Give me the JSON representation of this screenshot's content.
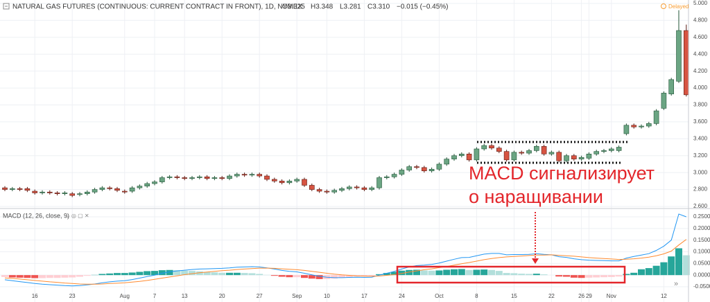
{
  "header": {
    "title": "NATURAL GAS FUTURES (CONTINUOUS: CURRENT CONTRACT IN FRONT), 1D, NYMEX",
    "ohlc": [
      "O3.325",
      "H3.348",
      "L3.281",
      "C3.310",
      "−0.015 (−0.45%)"
    ],
    "status": "Delayed"
  },
  "chart_data": [
    {
      "type": "candlestick",
      "annotations": [
        "MACD сигнализирует",
        "о наращивании"
      ],
      "up_color": "#6ba583",
      "down_color": "#d75442",
      "up_border": "#225437",
      "down_border": "#5b1a13",
      "open": [
        2.82,
        2.8,
        2.81,
        2.81,
        2.78,
        2.76,
        2.77,
        2.76,
        2.75,
        2.75,
        2.74,
        2.75,
        2.77,
        2.8,
        2.82,
        2.81,
        2.78,
        2.78,
        2.82,
        2.84,
        2.87,
        2.89,
        2.94,
        2.95,
        2.94,
        2.93,
        2.94,
        2.95,
        2.93,
        2.94,
        2.93,
        2.96,
        2.98,
        2.97,
        2.98,
        2.96,
        2.92,
        2.9,
        2.88,
        2.9,
        2.92,
        2.85,
        2.8,
        2.78,
        2.77,
        2.79,
        2.81,
        2.83,
        2.82,
        2.8,
        2.82,
        2.94,
        2.95,
        2.98,
        3.03,
        3.07,
        3.06,
        3.02,
        3.04,
        3.1,
        3.16,
        3.2,
        3.22,
        3.15,
        3.28,
        3.32,
        3.29,
        3.25,
        3.15,
        3.24,
        3.23,
        3.26,
        3.31,
        3.22,
        3.24,
        3.14,
        3.2,
        3.16,
        3.17,
        3.22,
        3.25,
        3.26,
        3.26,
        3.46,
        3.56,
        3.54,
        3.55,
        3.58,
        3.76,
        3.93,
        4.08,
        4.68
      ],
      "high": [
        2.84,
        2.83,
        2.83,
        2.83,
        2.8,
        2.79,
        2.79,
        2.78,
        2.78,
        2.77,
        2.77,
        2.79,
        2.82,
        2.84,
        2.84,
        2.83,
        2.8,
        2.84,
        2.86,
        2.89,
        2.91,
        2.96,
        2.97,
        2.97,
        2.96,
        2.96,
        2.97,
        2.97,
        2.96,
        2.96,
        2.98,
        3.0,
        3.0,
        3.0,
        3.0,
        2.98,
        2.94,
        2.92,
        2.92,
        2.94,
        2.94,
        2.87,
        2.82,
        2.8,
        2.81,
        2.83,
        2.85,
        2.85,
        2.84,
        2.84,
        2.96,
        2.97,
        3.0,
        3.05,
        3.09,
        3.09,
        3.08,
        3.06,
        3.12,
        3.18,
        3.22,
        3.24,
        3.24,
        3.3,
        3.34,
        3.34,
        3.31,
        3.27,
        3.26,
        3.26,
        3.28,
        3.33,
        3.33,
        3.26,
        3.26,
        3.22,
        3.22,
        3.2,
        3.24,
        3.27,
        3.28,
        3.3,
        3.32,
        3.58,
        3.58,
        3.57,
        3.6,
        3.75,
        3.96,
        4.12,
        4.92,
        4.75
      ],
      "low": [
        2.78,
        2.78,
        2.78,
        2.77,
        2.74,
        2.74,
        2.74,
        2.73,
        2.73,
        2.71,
        2.72,
        2.73,
        2.75,
        2.78,
        2.79,
        2.77,
        2.75,
        2.76,
        2.8,
        2.82,
        2.85,
        2.87,
        2.92,
        2.92,
        2.91,
        2.91,
        2.92,
        2.91,
        2.91,
        2.91,
        2.91,
        2.94,
        2.95,
        2.95,
        2.94,
        2.9,
        2.88,
        2.86,
        2.86,
        2.88,
        2.83,
        2.78,
        2.76,
        2.75,
        2.75,
        2.77,
        2.79,
        2.8,
        2.78,
        2.78,
        2.8,
        2.92,
        2.93,
        2.96,
        3.01,
        3.04,
        3.0,
        3.0,
        3.02,
        3.08,
        3.14,
        3.18,
        3.13,
        3.13,
        3.26,
        3.27,
        3.23,
        3.13,
        3.13,
        3.21,
        3.21,
        3.24,
        3.2,
        3.2,
        3.12,
        3.12,
        3.14,
        3.14,
        3.15,
        3.2,
        3.23,
        3.24,
        3.24,
        3.44,
        3.52,
        3.52,
        3.53,
        3.56,
        3.74,
        3.91,
        4.06,
        3.9
      ],
      "close": [
        2.8,
        2.81,
        2.8,
        2.79,
        2.76,
        2.77,
        2.76,
        2.75,
        2.76,
        2.73,
        2.75,
        2.77,
        2.8,
        2.82,
        2.81,
        2.79,
        2.77,
        2.82,
        2.84,
        2.87,
        2.89,
        2.94,
        2.95,
        2.94,
        2.93,
        2.94,
        2.95,
        2.93,
        2.94,
        2.93,
        2.96,
        2.98,
        2.97,
        2.98,
        2.96,
        2.92,
        2.9,
        2.88,
        2.9,
        2.92,
        2.85,
        2.8,
        2.78,
        2.77,
        2.79,
        2.81,
        2.83,
        2.82,
        2.8,
        2.82,
        2.94,
        2.95,
        2.98,
        3.03,
        3.07,
        3.06,
        3.02,
        3.04,
        3.1,
        3.16,
        3.2,
        3.22,
        3.15,
        3.28,
        3.32,
        3.29,
        3.25,
        3.15,
        3.24,
        3.23,
        3.26,
        3.31,
        3.22,
        3.24,
        3.14,
        3.2,
        3.16,
        3.18,
        3.22,
        3.25,
        3.26,
        3.28,
        3.3,
        3.56,
        3.54,
        3.55,
        3.58,
        3.73,
        3.94,
        4.1,
        4.68,
        3.92
      ],
      "ylim": [
        2.6,
        5.0
      ],
      "yticks": [
        {
          "value": 2.6,
          "label": "2.600"
        },
        {
          "value": 2.8,
          "label": "2.800"
        },
        {
          "value": 3.0,
          "label": "3.000"
        },
        {
          "value": 3.2,
          "label": "3.200"
        },
        {
          "value": 3.4,
          "label": "3.400"
        },
        {
          "value": 3.6,
          "label": "3.600"
        },
        {
          "value": 3.8,
          "label": "3.800"
        },
        {
          "value": 4.0,
          "label": "4.000"
        },
        {
          "value": 4.2,
          "label": "4.200"
        },
        {
          "value": 4.4,
          "label": "4.400"
        },
        {
          "value": 4.6,
          "label": "4.600"
        },
        {
          "value": 4.8,
          "label": "4.800"
        },
        {
          "value": 5.0,
          "label": "5.000"
        }
      ],
      "grid": true
    },
    {
      "type": "macd",
      "title": "MACD (12, 26, close, 9)",
      "series": [
        {
          "name": "MACD",
          "color": "#2196f3",
          "values": [
            -0.02,
            -0.024,
            -0.028,
            -0.032,
            -0.036,
            -0.039,
            -0.041,
            -0.043,
            -0.045,
            -0.046,
            -0.045,
            -0.042,
            -0.038,
            -0.033,
            -0.029,
            -0.026,
            -0.024,
            -0.019,
            -0.013,
            -0.006,
            0.0,
            0.008,
            0.014,
            0.018,
            0.021,
            0.024,
            0.026,
            0.027,
            0.028,
            0.029,
            0.031,
            0.034,
            0.035,
            0.036,
            0.035,
            0.031,
            0.026,
            0.02,
            0.016,
            0.014,
            0.008,
            0.001,
            -0.005,
            -0.009,
            -0.011,
            -0.011,
            -0.01,
            -0.009,
            -0.01,
            -0.009,
            0.0,
            0.008,
            0.016,
            0.026,
            0.035,
            0.041,
            0.043,
            0.046,
            0.052,
            0.06,
            0.068,
            0.075,
            0.076,
            0.083,
            0.09,
            0.093,
            0.093,
            0.087,
            0.088,
            0.088,
            0.089,
            0.092,
            0.089,
            0.087,
            0.079,
            0.076,
            0.07,
            0.066,
            0.064,
            0.063,
            0.062,
            0.061,
            0.061,
            0.073,
            0.08,
            0.086,
            0.092,
            0.106,
            0.124,
            0.15,
            0.262,
            0.25
          ]
        },
        {
          "name": "Signal",
          "color": "#ff8a30",
          "values": [
            -0.012,
            -0.014,
            -0.017,
            -0.02,
            -0.023,
            -0.026,
            -0.029,
            -0.031,
            -0.034,
            -0.036,
            -0.038,
            -0.039,
            -0.039,
            -0.038,
            -0.036,
            -0.035,
            -0.033,
            -0.03,
            -0.027,
            -0.023,
            -0.018,
            -0.013,
            -0.008,
            -0.003,
            0.002,
            0.006,
            0.01,
            0.013,
            0.016,
            0.019,
            0.021,
            0.024,
            0.026,
            0.028,
            0.03,
            0.03,
            0.029,
            0.027,
            0.025,
            0.023,
            0.02,
            0.016,
            0.012,
            0.008,
            0.004,
            0.001,
            -0.001,
            -0.003,
            -0.004,
            -0.005,
            -0.004,
            -0.001,
            0.002,
            0.007,
            0.013,
            0.018,
            0.023,
            0.027,
            0.032,
            0.037,
            0.043,
            0.049,
            0.054,
            0.06,
            0.066,
            0.071,
            0.075,
            0.078,
            0.08,
            0.082,
            0.084,
            0.086,
            0.086,
            0.087,
            0.085,
            0.083,
            0.081,
            0.078,
            0.075,
            0.073,
            0.071,
            0.069,
            0.067,
            0.068,
            0.07,
            0.073,
            0.077,
            0.083,
            0.091,
            0.103,
            0.129,
            0.153
          ]
        }
      ],
      "histogram": [
        -0.008,
        -0.01,
        -0.011,
        -0.012,
        -0.013,
        -0.013,
        -0.012,
        -0.012,
        -0.011,
        -0.01,
        -0.007,
        -0.003,
        0.001,
        0.005,
        0.007,
        0.009,
        0.009,
        0.011,
        0.014,
        0.017,
        0.018,
        0.021,
        0.022,
        0.021,
        0.019,
        0.018,
        0.016,
        0.014,
        0.012,
        0.01,
        0.01,
        0.01,
        0.009,
        0.008,
        0.005,
        0.001,
        -0.003,
        -0.007,
        -0.009,
        -0.009,
        -0.012,
        -0.015,
        -0.017,
        -0.017,
        -0.015,
        -0.012,
        -0.009,
        -0.006,
        -0.006,
        -0.004,
        0.004,
        0.009,
        0.014,
        0.019,
        0.022,
        0.023,
        0.02,
        0.019,
        0.02,
        0.023,
        0.025,
        0.026,
        0.022,
        0.023,
        0.024,
        0.022,
        0.018,
        0.009,
        0.008,
        0.006,
        0.005,
        0.006,
        0.003,
        0.0,
        -0.006,
        -0.007,
        -0.011,
        -0.012,
        -0.011,
        -0.01,
        -0.009,
        -0.008,
        -0.006,
        0.005,
        0.01,
        0.025,
        0.03,
        0.04,
        0.055,
        0.08,
        0.115,
        0.085
      ],
      "histogram_colors": [
        "#26a69a",
        "#b2dfdb",
        "#ef5350",
        "#ffcdd2"
      ],
      "ylim": [
        -0.05,
        0.25
      ],
      "yticks": [
        {
          "value": -0.05,
          "label": "-0.0500"
        },
        {
          "value": 0,
          "label": "0.0000"
        },
        {
          "value": 0.05,
          "label": "0.0500"
        },
        {
          "value": 0.1,
          "label": "0.1000"
        },
        {
          "value": 0.15,
          "label": "0.1500"
        },
        {
          "value": 0.2,
          "label": "0.2000"
        },
        {
          "value": 0.25,
          "label": "0.2500"
        }
      ],
      "xticks": [
        {
          "value": 4,
          "label": "16"
        },
        {
          "value": 9,
          "label": "23"
        },
        {
          "value": 16,
          "label": "Aug"
        },
        {
          "value": 20,
          "label": "7"
        },
        {
          "value": 24,
          "label": "13"
        },
        {
          "value": 29,
          "label": "20"
        },
        {
          "value": 34,
          "label": "27"
        },
        {
          "value": 39,
          "label": "Sep"
        },
        {
          "value": 43,
          "label": "10"
        },
        {
          "value": 48,
          "label": "17"
        },
        {
          "value": 53,
          "label": "24"
        },
        {
          "value": 58,
          "label": "Oct"
        },
        {
          "value": 63,
          "label": "8"
        },
        {
          "value": 68,
          "label": "15"
        },
        {
          "value": 73,
          "label": "22"
        },
        {
          "value": 77,
          "label": "26"
        },
        {
          "value": 78,
          "label": "29"
        },
        {
          "value": 81,
          "label": "Nov"
        },
        {
          "value": 88,
          "label": "12"
        }
      ],
      "grid": true
    }
  ]
}
